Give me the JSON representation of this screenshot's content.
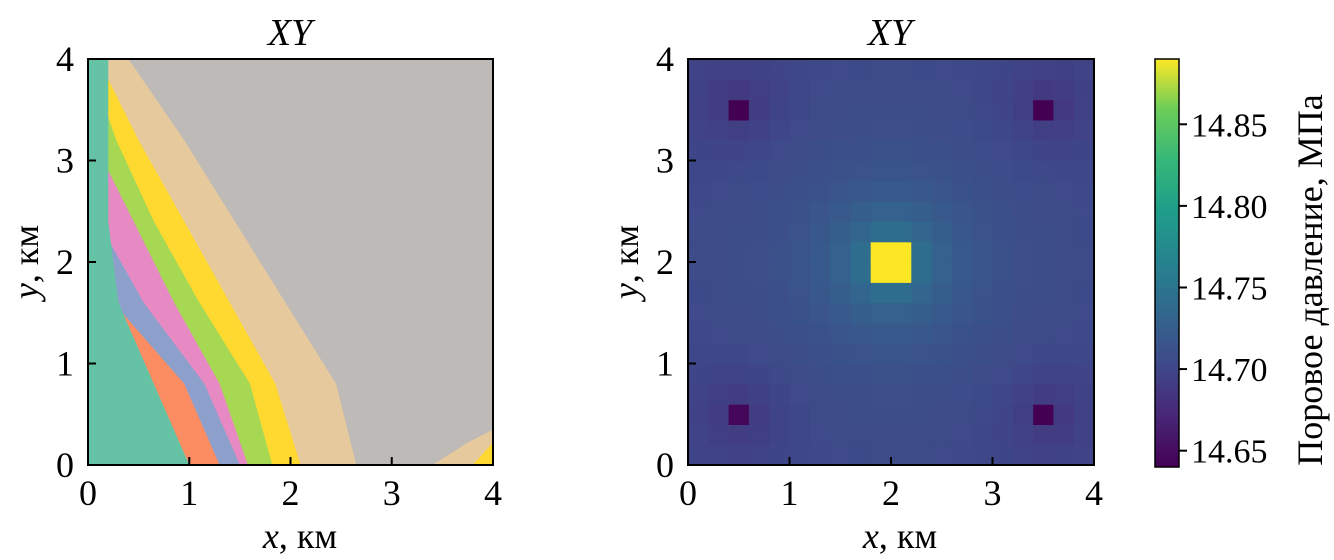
{
  "chart_data": [
    {
      "type": "area",
      "title": "XY",
      "xlabel_var": "x",
      "xlabel_unit": ", км",
      "ylabel_var": "y",
      "ylabel_unit": ", км",
      "xlim": [
        0,
        4
      ],
      "ylim": [
        0,
        4
      ],
      "xticks": [
        "0",
        "1",
        "2",
        "3",
        "4"
      ],
      "yticks": [
        "0",
        "1",
        "2",
        "3",
        "4"
      ],
      "background_color": "#bdbab8",
      "bands": [
        {
          "color": "#e6c99c",
          "x_at_y": [
            2.65,
            2.45,
            1.95,
            1.45,
            0.95,
            0.4
          ]
        },
        {
          "color": "#ffd92f",
          "x_at_y": [
            2.1,
            1.85,
            1.4,
            0.95,
            0.5,
            0.1
          ]
        },
        {
          "color": "#a6d854",
          "x_at_y": [
            1.82,
            1.6,
            1.1,
            0.65,
            0.28,
            0.0
          ]
        },
        {
          "color": "#e78ac3",
          "x_at_y": [
            1.58,
            1.3,
            0.85,
            0.45,
            0.05,
            0.0
          ]
        },
        {
          "color": "#8da0cb",
          "x_at_y": [
            1.5,
            1.15,
            0.55,
            0.1,
            0.0,
            0.0
          ]
        },
        {
          "color": "#fc8d62",
          "x_at_y": [
            1.3,
            0.95,
            0.25,
            0.0,
            0.0,
            0.0
          ]
        },
        {
          "color": "#66c2a5",
          "x_at_y": [
            1.0,
            0.65,
            0.3,
            0.2,
            0.2,
            0.2
          ]
        }
      ],
      "band_y_levels": [
        0,
        0.8,
        1.6,
        2.4,
        3.2,
        4.0
      ],
      "corner_patch": {
        "color": "#e6c99c",
        "inner_color": "#ffd92f"
      }
    },
    {
      "type": "heatmap",
      "title": "XY",
      "xlabel_var": "x",
      "xlabel_unit": ", км",
      "ylabel_var": "y",
      "ylabel_unit": ", км",
      "xlim": [
        0,
        4
      ],
      "ylim": [
        0,
        4
      ],
      "xticks": [
        "0",
        "1",
        "2",
        "3",
        "4"
      ],
      "yticks": [
        "0",
        "1",
        "2",
        "3",
        "4"
      ],
      "grid_size": 20,
      "value_range": [
        14.64,
        14.89
      ],
      "base_value": 14.7,
      "center": {
        "x": 2.0,
        "y": 2.0,
        "peak": 14.89
      },
      "wells": [
        {
          "x": 0.5,
          "y": 3.55,
          "value": 14.64
        },
        {
          "x": 3.55,
          "y": 3.55,
          "value": 14.64
        },
        {
          "x": 0.5,
          "y": 0.5,
          "value": 14.645
        },
        {
          "x": 3.55,
          "y": 0.5,
          "value": 14.64
        }
      ],
      "colorbar": {
        "label": "Поровое давление, МПа",
        "ticks": [
          "14.65",
          "14.70",
          "14.75",
          "14.80",
          "14.85"
        ],
        "tick_values": [
          14.65,
          14.7,
          14.75,
          14.8,
          14.85
        ],
        "colormap": "viridis"
      }
    }
  ]
}
